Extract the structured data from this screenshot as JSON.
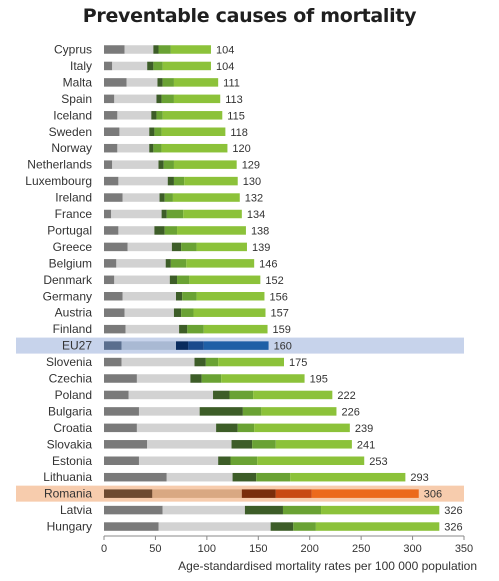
{
  "chart_data": {
    "type": "bar",
    "orientation": "horizontal",
    "stacked": true,
    "title": "Preventable causes of mortality",
    "xlabel": "Age-standardised mortality rates per 100 000 population",
    "ylabel": "",
    "xlim": [
      0,
      350
    ],
    "xticks": [
      0,
      50,
      100,
      150,
      200,
      250,
      300,
      350
    ],
    "grid": false,
    "legend": "none",
    "categories": [
      "Cyprus",
      "Italy",
      "Malta",
      "Spain",
      "Iceland",
      "Sweden",
      "Norway",
      "Netherlands",
      "Luxembourg",
      "Ireland",
      "France",
      "Portugal",
      "Greece",
      "Belgium",
      "Denmark",
      "Germany",
      "Austria",
      "Finland",
      "EU27",
      "Slovenia",
      "Czechia",
      "Poland",
      "Bulgaria",
      "Croatia",
      "Slovakia",
      "Estonia",
      "Lithuania",
      "Romania",
      "Latvia",
      "Hungary"
    ],
    "totals": [
      104,
      104,
      111,
      113,
      115,
      118,
      120,
      129,
      130,
      132,
      134,
      138,
      139,
      146,
      152,
      156,
      157,
      159,
      160,
      175,
      195,
      222,
      226,
      239,
      241,
      253,
      293,
      306,
      326,
      326
    ],
    "segments": [
      [
        20,
        28,
        5,
        12,
        39
      ],
      [
        8,
        34,
        6,
        9,
        47
      ],
      [
        22,
        30,
        5,
        11,
        43
      ],
      [
        10,
        41,
        5,
        12,
        45
      ],
      [
        13,
        33,
        5,
        6,
        58
      ],
      [
        15,
        29,
        5,
        7,
        62
      ],
      [
        13,
        31,
        4,
        8,
        64
      ],
      [
        8,
        45,
        5,
        10,
        61
      ],
      [
        14,
        48,
        6,
        10,
        52
      ],
      [
        18,
        36,
        5,
        8,
        65
      ],
      [
        7,
        49,
        5,
        16,
        57
      ],
      [
        14,
        35,
        10,
        12,
        67
      ],
      [
        23,
        43,
        9,
        15,
        49
      ],
      [
        12,
        48,
        5,
        15,
        66
      ],
      [
        10,
        54,
        7,
        12,
        69
      ],
      [
        18,
        52,
        6,
        14,
        66
      ],
      [
        20,
        48,
        7,
        12,
        70
      ],
      [
        21,
        52,
        8,
        16,
        62
      ],
      [
        17,
        53,
        12,
        15,
        63
      ],
      [
        17,
        71,
        11,
        12,
        64
      ],
      [
        32,
        52,
        11,
        19,
        81
      ],
      [
        24,
        82,
        16,
        23,
        77
      ],
      [
        34,
        59,
        42,
        18,
        73
      ],
      [
        32,
        77,
        21,
        16,
        93
      ],
      [
        42,
        82,
        20,
        23,
        74
      ],
      [
        34,
        77,
        12,
        26,
        104
      ],
      [
        61,
        64,
        23,
        33,
        112
      ],
      [
        47,
        87,
        33,
        35,
        104
      ],
      [
        57,
        80,
        37,
        37,
        115
      ],
      [
        53,
        109,
        22,
        22,
        120
      ]
    ],
    "highlight": {
      "EU27": "blue",
      "Romania": "orange"
    }
  },
  "colors": {
    "standard": [
      "#7a7a7a",
      "#d2d2d2",
      "#3d5d28",
      "#6aa234",
      "#8cc23a"
    ],
    "blue": [
      "#5a6e8e",
      "#a9b9d3",
      "#0a2c5e",
      "#1a4a8c",
      "#1f5fa6"
    ],
    "orange": [
      "#6e4a30",
      "#d9a882",
      "#7a2e0c",
      "#c84a14",
      "#ec6a1c"
    ],
    "highlight_band": {
      "blue": "#c7d3eb",
      "orange": "#f7ccad"
    },
    "axis": "#888888",
    "text": "#333333"
  }
}
